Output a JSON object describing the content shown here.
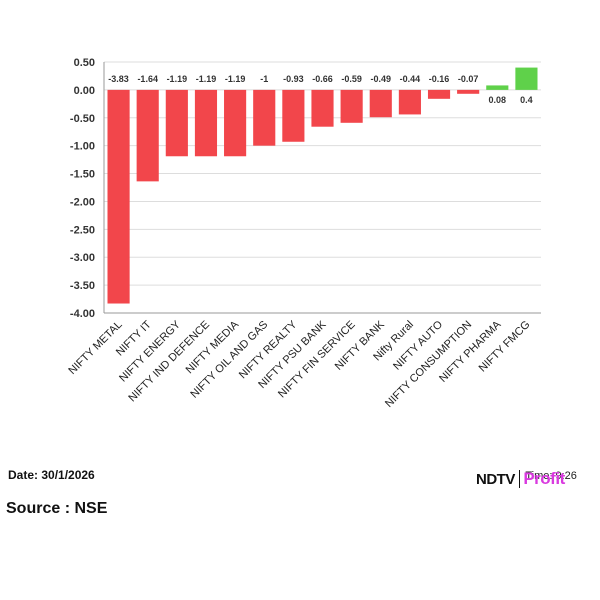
{
  "chart_data": {
    "type": "bar",
    "title": "",
    "xlabel": "",
    "ylabel": "",
    "ylim": [
      -4.0,
      0.5
    ],
    "yticks": [
      0.5,
      0.0,
      -0.5,
      -1.0,
      -1.5,
      -2.0,
      -2.5,
      -3.0,
      -3.5,
      -4.0
    ],
    "ytick_labels": [
      "0.50",
      "0.00",
      "-0.50",
      "-1.00",
      "-1.50",
      "-2.00",
      "-2.50",
      "-3.00",
      "-3.50",
      "-4.00"
    ],
    "grid": true,
    "categories": [
      "NIFTY METAL",
      "NIFTY IT",
      "NIFTY ENERGY",
      "NIFTY IND DEFENCE",
      "NIFTY MEDIA",
      "NIFTY OIL AND GAS",
      "NIFTY REALTY",
      "NIFTY PSU BANK",
      "NIFTY FIN SERVICE",
      "NIFTY BANK",
      "Nifty Rural",
      "NIFTY AUTO",
      "NIFTY CONSUMPTION",
      "NIFTY PHARMA",
      "NIFTY FMCG"
    ],
    "values": [
      -3.83,
      -1.64,
      -1.19,
      -1.19,
      -1.19,
      -1,
      -0.93,
      -0.66,
      -0.59,
      -0.49,
      -0.44,
      -0.16,
      -0.07,
      0.08,
      0.4
    ],
    "value_labels": [
      "-3.83",
      "-1.64",
      "-1.19",
      "-1.19",
      "-1.19",
      "-1",
      "-0.93",
      "-0.66",
      "-0.59",
      "-0.49",
      "-0.44",
      "-0.16",
      "-0.07",
      "0.08",
      "0.4"
    ],
    "colors": {
      "negative": "#f2464b",
      "positive": "#5fd14a",
      "grid": "#dddddd",
      "axis": "#999999"
    }
  },
  "footer": {
    "date": "Date: 30/1/2026",
    "source": "Source : NSE",
    "logo_ndtv": "NDTV",
    "logo_profit": "Profit",
    "time": "Time: 9:26"
  }
}
